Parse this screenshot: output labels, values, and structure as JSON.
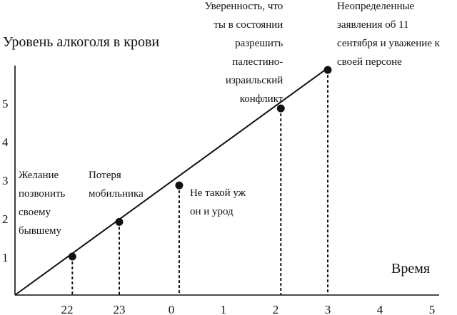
{
  "chart_data": {
    "type": "line",
    "ylabel": "Уровень алкоголя в крови",
    "xlabel": "Время",
    "x_ticks": [
      "22",
      "23",
      "0",
      "1",
      "2",
      "3",
      "4",
      "5"
    ],
    "y_ticks": [
      "1",
      "2",
      "3",
      "4",
      "5"
    ],
    "xlim": [
      21.0,
      29.0
    ],
    "ylim": [
      0,
      6
    ],
    "trend": [
      [
        21.0,
        0.0
      ],
      [
        27.0,
        5.9
      ]
    ],
    "points": [
      {
        "x": 22.1,
        "y": 1.0,
        "label": [
          "Желание",
          "позвонить",
          "своему",
          "бывшему"
        ],
        "label_side": "left"
      },
      {
        "x": 23.0,
        "y": 1.9,
        "label": [
          "Потеря",
          "мобильника"
        ],
        "label_side": "left"
      },
      {
        "x": 24.15,
        "y": 2.85,
        "label": [
          "Не такой уж",
          "он и урод"
        ],
        "label_side": "right"
      },
      {
        "x": 26.1,
        "y": 4.85,
        "label": [
          "Уверенность, что",
          "ты в состоянии",
          "разрешить",
          "палестино-",
          "израильский",
          "конфликт"
        ],
        "label_side": "left"
      },
      {
        "x": 27.0,
        "y": 5.85,
        "label": [
          "Неопределенные",
          "заявления об 11",
          "сентября и уважение к",
          "своей персоне"
        ],
        "label_side": "right"
      }
    ]
  }
}
